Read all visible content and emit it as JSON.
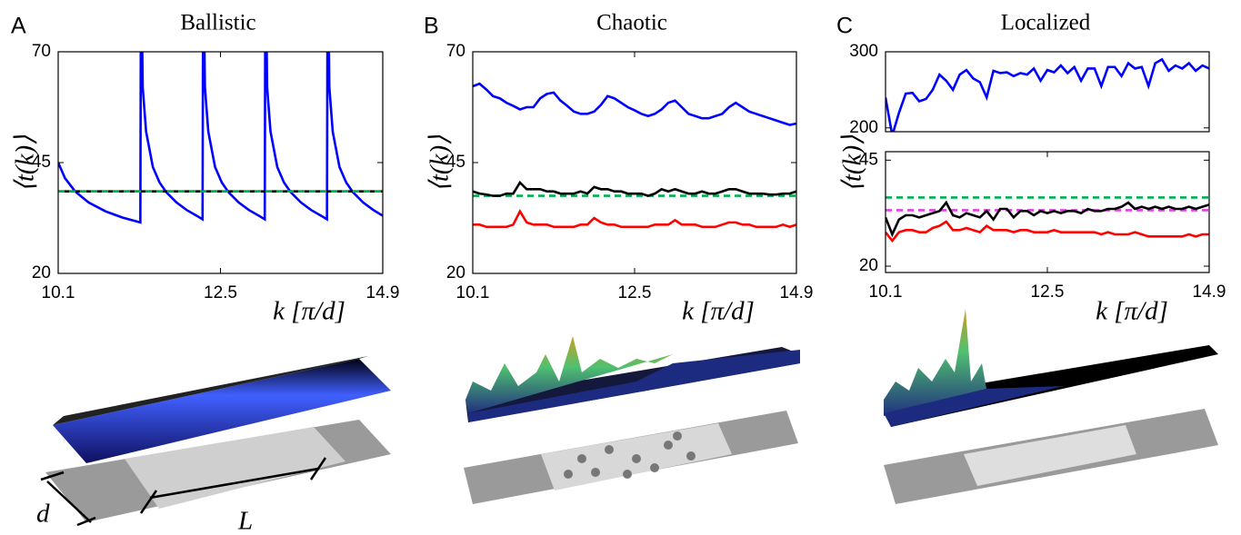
{
  "chart_data": [
    {
      "type": "line",
      "panel": "A",
      "title": "Ballistic",
      "xlabel": "k [π/d]",
      "ylabel": "⟨t(k)⟩",
      "annotations": [
        "d",
        "L"
      ],
      "xlim": [
        10.1,
        14.9
      ],
      "xticks": [
        10.1,
        12.5,
        14.9
      ],
      "ylim": [
        20,
        70
      ],
      "yticks": [
        20,
        45,
        70
      ],
      "series": [
        {
          "color": "#0000ff",
          "dash": false,
          "x": [
            10.1,
            10.2,
            10.35,
            10.55,
            10.8,
            11.05,
            11.315,
            11.325,
            11.35,
            11.4,
            11.5,
            11.6,
            11.7,
            11.85,
            12.0,
            12.15,
            12.235,
            12.245,
            12.27,
            12.32,
            12.42,
            12.52,
            12.62,
            12.77,
            12.92,
            13.07,
            13.155,
            13.165,
            13.19,
            13.24,
            13.34,
            13.44,
            13.54,
            13.69,
            13.84,
            13.99,
            14.075,
            14.085,
            14.11,
            14.16,
            14.26,
            14.36,
            14.46,
            14.61,
            14.76,
            14.9
          ],
          "values": [
            45,
            41.5,
            38.5,
            36,
            34,
            32.6,
            31.5,
            95,
            62,
            52,
            44,
            40.5,
            38.3,
            36,
            34.3,
            33,
            32.2,
            95,
            62,
            52,
            44,
            40.5,
            38.3,
            36,
            34.3,
            33,
            32.2,
            95,
            62,
            52,
            44,
            40.5,
            38.3,
            36,
            34.3,
            33,
            32.2,
            95,
            62,
            52,
            44,
            40.5,
            38.3,
            36,
            34.3,
            33
          ]
        },
        {
          "color": "#000000",
          "dash": false,
          "x": [
            10.1,
            14.9
          ],
          "values": [
            38.5,
            38.5
          ]
        },
        {
          "color": "#00b050",
          "dash": true,
          "x": [
            10.1,
            14.9
          ],
          "values": [
            38.5,
            38.5
          ]
        }
      ]
    },
    {
      "type": "line",
      "panel": "B",
      "title": "Chaotic",
      "xlabel": "k [π/d]",
      "ylabel": "⟨t(k)⟩",
      "xlim": [
        10.1,
        14.9
      ],
      "xticks": [
        10.1,
        12.5,
        14.9
      ],
      "ylim": [
        20,
        70
      ],
      "yticks": [
        20,
        45,
        70
      ],
      "x": [
        10.1,
        10.2,
        10.3,
        10.4,
        10.5,
        10.6,
        10.7,
        10.8,
        10.9,
        11.0,
        11.1,
        11.2,
        11.3,
        11.4,
        11.5,
        11.6,
        11.7,
        11.8,
        11.9,
        12.0,
        12.1,
        12.2,
        12.3,
        12.4,
        12.5,
        12.6,
        12.7,
        12.8,
        12.9,
        13.0,
        13.1,
        13.2,
        13.3,
        13.4,
        13.5,
        13.6,
        13.7,
        13.8,
        13.9,
        14.0,
        14.1,
        14.2,
        14.3,
        14.4,
        14.5,
        14.6,
        14.7,
        14.8,
        14.9
      ],
      "series": [
        {
          "color": "#0000ff",
          "dash": false,
          "values": [
            62.2,
            62.8,
            61.5,
            60,
            59.5,
            58.5,
            57.8,
            57,
            57.5,
            57.5,
            59.5,
            60.5,
            60.8,
            59,
            57.8,
            56.5,
            56,
            56,
            56.5,
            58,
            60,
            59.5,
            58.5,
            57.5,
            56.8,
            56,
            55.5,
            56,
            57,
            58.5,
            59,
            57.5,
            56,
            55.5,
            55,
            55,
            55.5,
            56,
            57.5,
            58.5,
            57.5,
            56.5,
            56,
            55.5,
            55,
            54.5,
            54,
            53.5,
            53.8
          ]
        },
        {
          "color": "#00b050",
          "dash": true,
          "x": [
            10.1,
            14.9
          ],
          "values": [
            37.5,
            37.5
          ]
        },
        {
          "color": "#000000",
          "dash": false,
          "values": [
            38.5,
            38,
            37.8,
            37.5,
            37.5,
            38,
            38,
            40.5,
            39,
            39,
            39,
            38.5,
            38.5,
            38,
            38,
            38,
            38.5,
            38,
            39.5,
            39,
            39,
            38.5,
            38.5,
            38,
            38,
            38,
            37.5,
            38,
            39,
            38.5,
            39,
            38.5,
            38,
            38,
            38.5,
            38,
            38,
            38.5,
            39,
            39,
            38.5,
            38,
            38,
            38,
            37.8,
            37.8,
            38,
            38,
            38.5
          ]
        },
        {
          "color": "#ff0000",
          "dash": false,
          "values": [
            31,
            31,
            30.5,
            30.5,
            30.5,
            30.5,
            31,
            34,
            31.5,
            31,
            31,
            31,
            30.5,
            30.5,
            30.5,
            30.5,
            31,
            31,
            32.5,
            31.5,
            31,
            31,
            30.5,
            30.5,
            30.5,
            30.5,
            30.5,
            31,
            31,
            31,
            32,
            31,
            31,
            31,
            30.5,
            30.5,
            30.5,
            31,
            31.5,
            31.5,
            31,
            31,
            30.5,
            30.5,
            30.5,
            30.5,
            31,
            30.5,
            31
          ]
        }
      ]
    },
    {
      "type": "line",
      "panel": "C",
      "title": "Localized",
      "xlim": [
        10.1,
        14.9
      ],
      "ylim": [
        195,
        300
      ],
      "yticks": [
        200,
        300
      ],
      "x": [
        10.1,
        10.2,
        10.3,
        10.4,
        10.5,
        10.6,
        10.7,
        10.8,
        10.9,
        11.0,
        11.1,
        11.2,
        11.3,
        11.4,
        11.5,
        11.6,
        11.7,
        11.8,
        11.9,
        12.0,
        12.1,
        12.2,
        12.3,
        12.4,
        12.5,
        12.6,
        12.7,
        12.8,
        12.9,
        13.0,
        13.1,
        13.2,
        13.3,
        13.4,
        13.5,
        13.6,
        13.7,
        13.8,
        13.9,
        14.0,
        14.1,
        14.2,
        14.3,
        14.4,
        14.5,
        14.6,
        14.7,
        14.8,
        14.9
      ],
      "series": [
        {
          "color": "#0000ff",
          "dash": false,
          "values": [
            240,
            190,
            220,
            245,
            246,
            235,
            238,
            250,
            270,
            262,
            250,
            270,
            276,
            265,
            260,
            240,
            275,
            272,
            273,
            268,
            272,
            270,
            278,
            262,
            276,
            273,
            282,
            272,
            280,
            262,
            278,
            278,
            255,
            280,
            280,
            268,
            285,
            278,
            280,
            255,
            285,
            290,
            275,
            282,
            278,
            285,
            275,
            282,
            278
          ]
        }
      ]
    },
    {
      "type": "line",
      "xlabel": "k [π/d]",
      "ylabel": "⟨t(k)⟩",
      "xlim": [
        10.1,
        14.9
      ],
      "xticks": [
        10.1,
        12.5,
        14.9
      ],
      "ylim": [
        18.5,
        47
      ],
      "yticks": [
        20,
        45
      ],
      "x": [
        10.1,
        10.2,
        10.3,
        10.4,
        10.5,
        10.6,
        10.7,
        10.8,
        10.9,
        11.0,
        11.1,
        11.2,
        11.3,
        11.4,
        11.5,
        11.6,
        11.7,
        11.8,
        11.9,
        12.0,
        12.1,
        12.2,
        12.3,
        12.4,
        12.5,
        12.6,
        12.7,
        12.8,
        12.9,
        13.0,
        13.1,
        13.2,
        13.3,
        13.4,
        13.5,
        13.6,
        13.7,
        13.8,
        13.9,
        14.0,
        14.1,
        14.2,
        14.3,
        14.4,
        14.5,
        14.6,
        14.7,
        14.8,
        14.9
      ],
      "series": [
        {
          "color": "#00b050",
          "dash": true,
          "x": [
            10.1,
            14.9
          ],
          "values": [
            36.2,
            36.2
          ]
        },
        {
          "color": "#e040e0",
          "dash": true,
          "x": [
            10.1,
            14.9
          ],
          "values": [
            33.2,
            33.2
          ]
        },
        {
          "color": "#000000",
          "dash": false,
          "values": [
            31.5,
            27.5,
            31,
            32,
            32,
            31.5,
            32,
            32.5,
            33,
            35,
            32,
            31.5,
            32.5,
            32,
            31.5,
            33,
            31,
            33.5,
            33.5,
            31.5,
            33,
            33,
            32,
            33,
            32.5,
            33,
            32.5,
            33,
            33,
            32.5,
            33.5,
            33,
            33,
            33.5,
            33.5,
            34,
            35,
            33.5,
            34,
            33.5,
            34,
            33.5,
            34,
            33.5,
            33.5,
            34,
            33.5,
            34,
            34.5
          ]
        },
        {
          "color": "#ff0000",
          "dash": false,
          "values": [
            28,
            26,
            28,
            28.5,
            28.5,
            28,
            28,
            29,
            29.5,
            30.5,
            28.5,
            28.5,
            29,
            28.5,
            28,
            29.5,
            28.5,
            28.5,
            28.5,
            28,
            28.5,
            28.5,
            28,
            28,
            28,
            28.5,
            28,
            28,
            28,
            28,
            28,
            28,
            27.5,
            28,
            27.5,
            27.5,
            27.5,
            28,
            27.5,
            27,
            27,
            27,
            27,
            27,
            27,
            27.5,
            27,
            27.5,
            27.5
          ]
        }
      ]
    }
  ]
}
